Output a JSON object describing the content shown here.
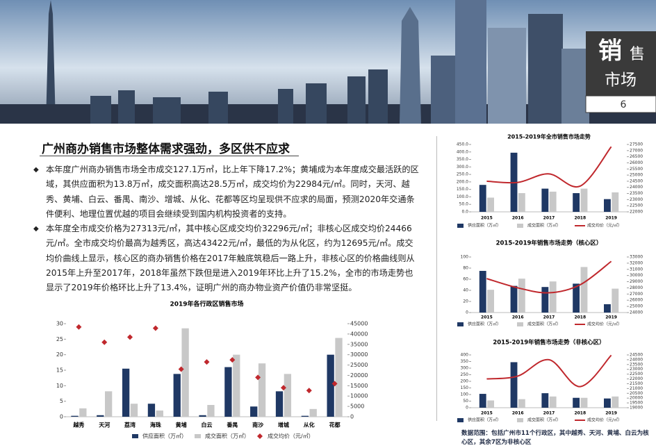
{
  "header": {
    "badge_main": "销",
    "badge_side": "售",
    "badge_line2": "市场",
    "page_number": "6"
  },
  "section_title": "广州商办销售市场整体需求强劲，多区供不应求",
  "paragraphs": [
    "本年度广州商办销售市场全市成交127.1万㎡，比上年下降17.2%；黄埔成为本年度成交最活跃的区域，其供应面积为13.8万㎡，成交面积高达28.5万㎡，成交均价为22984元/㎡。同时，天河、越秀、黄埔、白云、番禺、南沙、增城、从化、花都等区均呈现供不应求的局面，预测2020年交通条件便利、地理位置优越的项目会继续受到国内机构投资者的支持。",
    "本年度全市成交价格为27313元/㎡，其中核心区成交均价32296元/㎡；非核心区成交均价24466元/㎡。全市成交均价最高为越秀区，高达43422元/㎡，最低的为从化区，约为12695元/㎡。成交均价曲线上显示，核心区的商办销售价格在2017年触底筑稳后一路上升，非核心区的价格曲线则从2015年上升至2017年，2018年虽然下跌但是进入2019年环比上升了15.2%，全市的市场走势也显示了2019年价格环比上升了13.4%，证明广州的商办物业资产价值仍非常坚挺。"
  ],
  "chart_data": [
    {
      "type": "combo",
      "title": "2019年各行政区销售市场",
      "categories": [
        "越秀",
        "天河",
        "荔湾",
        "海珠",
        "黄埔",
        "白云",
        "番禺",
        "南沙",
        "增城",
        "从化",
        "花都"
      ],
      "series": [
        {
          "name": "供应面积（万㎡）",
          "type": "bar",
          "color": "#1f3864",
          "values": [
            0.3,
            0.5,
            15.5,
            4.2,
            13.8,
            0.5,
            16,
            3.3,
            8.2,
            0.3,
            20
          ]
        },
        {
          "name": "成交面积（万㎡）",
          "type": "bar",
          "color": "#c8c8c8",
          "values": [
            2.7,
            8.2,
            4.2,
            2,
            28.5,
            3.8,
            20,
            17.2,
            13.8,
            2.5,
            25.4
          ]
        },
        {
          "name": "成交均价（元/㎡）",
          "type": "scatter",
          "axis": "y2",
          "color": "#c0282d",
          "values": [
            43422,
            36000,
            38500,
            42800,
            22984,
            26500,
            27500,
            19000,
            14000,
            12695,
            16000
          ]
        }
      ],
      "ylim": [
        0,
        30
      ],
      "yticks": [
        0,
        5,
        10,
        15,
        20,
        25,
        30
      ],
      "y2lim": [
        0,
        45000
      ],
      "y2ticks": [
        0,
        5000,
        10000,
        15000,
        20000,
        25000,
        30000,
        35000,
        40000,
        45000
      ]
    },
    {
      "type": "combo",
      "title": "2015-2019年全市销售市场走势",
      "categories": [
        "2015",
        "2016",
        "2017",
        "2018",
        "2019"
      ],
      "series": [
        {
          "name": "供应面积（万㎡）",
          "type": "bar",
          "color": "#1f3864",
          "values": [
            180,
            395,
            155,
            125,
            85
          ]
        },
        {
          "name": "成交面积（万㎡）",
          "type": "bar",
          "color": "#c8c8c8",
          "values": [
            95,
            125,
            135,
            155,
            130
          ]
        },
        {
          "name": "成交均价（元/㎡）",
          "type": "line",
          "axis": "y2",
          "color": "#c0282d",
          "values": [
            24500,
            24400,
            25100,
            24100,
            27313
          ]
        }
      ],
      "ylim": [
        0,
        450
      ],
      "yticks": [
        {
          "value": 0,
          "label": "0.0"
        },
        {
          "value": 50,
          "label": "50.0"
        },
        {
          "value": 100,
          "label": "100.0"
        },
        {
          "value": 150,
          "label": "150.0"
        },
        {
          "value": 200,
          "label": "200.0"
        },
        {
          "value": 250,
          "label": "250.0"
        },
        {
          "value": 300,
          "label": "300.0"
        },
        {
          "value": 350,
          "label": "350.0"
        },
        {
          "value": 400,
          "label": "400.0"
        },
        {
          "value": 450,
          "label": "450.0"
        }
      ],
      "y2lim": [
        22000,
        27500
      ],
      "y2ticks": [
        22000,
        22500,
        23000,
        23500,
        24000,
        24500,
        25000,
        25500,
        26000,
        26500,
        27000,
        27500
      ]
    },
    {
      "type": "combo",
      "title": "2015-2019年销售市场走势（核心区）",
      "categories": [
        "2015",
        "2016",
        "2017",
        "2018",
        "2019"
      ],
      "series": [
        {
          "name": "供应面积（万㎡）",
          "type": "bar",
          "color": "#1f3864",
          "values": [
            75,
            48,
            46,
            52,
            15
          ]
        },
        {
          "name": "成交面积（万㎡）",
          "type": "bar",
          "color": "#c8c8c8",
          "values": [
            41,
            61,
            56,
            82,
            43
          ]
        },
        {
          "name": "成交均价（元/㎡）",
          "type": "line",
          "axis": "y2",
          "color": "#c0282d",
          "values": [
            29500,
            28000,
            27200,
            28500,
            32296
          ]
        }
      ],
      "ylim": [
        0,
        100
      ],
      "yticks": [
        0,
        20,
        40,
        60,
        80,
        100
      ],
      "y2lim": [
        24000,
        33000
      ],
      "y2ticks": [
        24000,
        25000,
        26000,
        27000,
        28000,
        29000,
        30000,
        31000,
        32000,
        33000
      ]
    },
    {
      "type": "combo",
      "title": "2015-2019年销售市场走势（非核心区）",
      "categories": [
        "2015",
        "2016",
        "2017",
        "2018",
        "2019"
      ],
      "series": [
        {
          "name": "供应面积（万㎡）",
          "type": "bar",
          "color": "#1f3864",
          "values": [
            105,
            345,
            110,
            75,
            70
          ]
        },
        {
          "name": "成交面积（万㎡）",
          "type": "bar",
          "color": "#c8c8c8",
          "values": [
            55,
            65,
            85,
            75,
            85
          ]
        },
        {
          "name": "成交均价（元/㎡）",
          "type": "line",
          "axis": "y2",
          "color": "#c0282d",
          "values": [
            22000,
            22300,
            24000,
            21200,
            24466
          ]
        }
      ],
      "ylim": [
        0,
        400
      ],
      "yticks": [
        0,
        50,
        100,
        150,
        200,
        250,
        300,
        350,
        400
      ],
      "y2lim": [
        19000,
        24500
      ],
      "y2ticks": [
        19000,
        19500,
        20000,
        20500,
        21000,
        21500,
        22000,
        22500,
        23000,
        23500,
        24000,
        24500
      ]
    }
  ],
  "footnote": "数据范围：包括广州市11个行政区，其中越秀、天河、黄埔、白云为核心区，其余7区为非核心区"
}
